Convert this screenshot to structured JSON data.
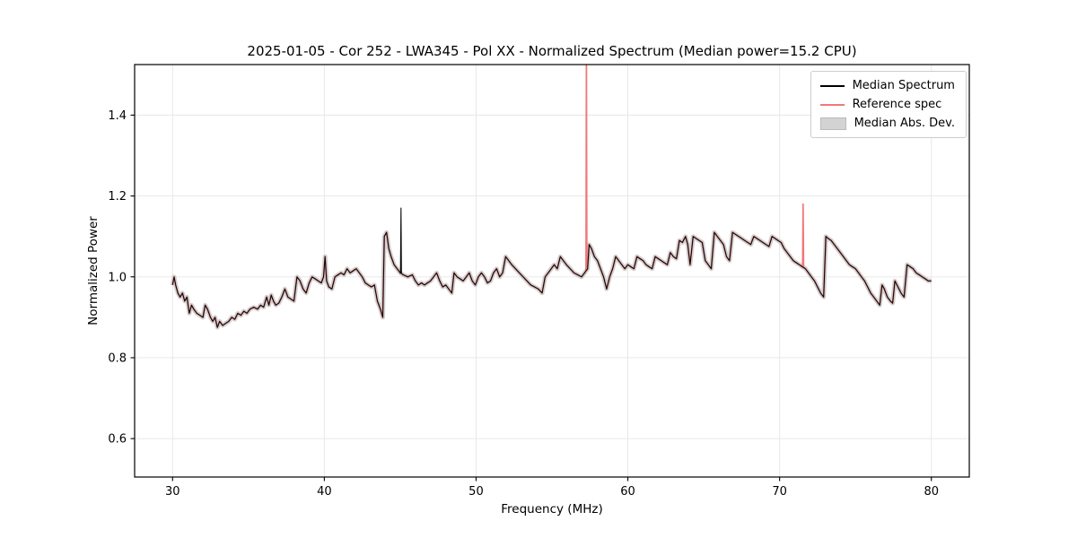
{
  "chart_data": {
    "type": "line",
    "title": "2025-01-05 - Cor 252 - LWA345 - Pol XX - Normalized Spectrum (Median power=15.2 CPU)",
    "xlabel": "Frequency (MHz)",
    "ylabel": "Normalized Power",
    "xlim": [
      27.5,
      82.5
    ],
    "ylim": [
      0.505,
      1.525
    ],
    "grid": true,
    "legend_position": "upper right",
    "xticks": [
      {
        "v": 30,
        "label": "30"
      },
      {
        "v": 40,
        "label": "40"
      },
      {
        "v": 50,
        "label": "50"
      },
      {
        "v": 60,
        "label": "60"
      },
      {
        "v": 70,
        "label": "70"
      },
      {
        "v": 80,
        "label": "80"
      }
    ],
    "yticks": [
      {
        "v": 0.6,
        "label": "0.6"
      },
      {
        "v": 0.8,
        "label": "0.8"
      },
      {
        "v": 1.0,
        "label": "1.0"
      },
      {
        "v": 1.2,
        "label": "1.2"
      },
      {
        "v": 1.4,
        "label": "1.4"
      }
    ],
    "legend": [
      {
        "label": "Median Spectrum",
        "type": "line",
        "color": "#000000"
      },
      {
        "label": "Reference spec",
        "type": "line",
        "color": "#f07878"
      },
      {
        "label": "Median Abs. Dev.",
        "type": "patch",
        "color": "#d3d3d3",
        "edge": "#bbbbbb"
      }
    ],
    "colors": {
      "median": "#0a0a0a",
      "reference": "#f07878",
      "mad_band": "#c9c9c9",
      "grid": "#e6e6e6",
      "frame": "#000000"
    },
    "base_points": [
      [
        30.0,
        0.98
      ],
      [
        30.1,
        1.0
      ],
      [
        30.2,
        0.98
      ],
      [
        30.35,
        0.96
      ],
      [
        30.5,
        0.95
      ],
      [
        30.65,
        0.96
      ],
      [
        30.8,
        0.94
      ],
      [
        30.95,
        0.95
      ],
      [
        31.1,
        0.91
      ],
      [
        31.25,
        0.93
      ],
      [
        31.4,
        0.92
      ],
      [
        31.6,
        0.91
      ],
      [
        31.8,
        0.905
      ],
      [
        32.0,
        0.9
      ],
      [
        32.15,
        0.93
      ],
      [
        32.3,
        0.92
      ],
      [
        32.5,
        0.9
      ],
      [
        32.65,
        0.89
      ],
      [
        32.8,
        0.9
      ],
      [
        32.95,
        0.875
      ],
      [
        33.1,
        0.89
      ],
      [
        33.3,
        0.88
      ],
      [
        33.5,
        0.885
      ],
      [
        33.7,
        0.89
      ],
      [
        33.9,
        0.9
      ],
      [
        34.1,
        0.895
      ],
      [
        34.3,
        0.91
      ],
      [
        34.5,
        0.905
      ],
      [
        34.7,
        0.915
      ],
      [
        34.9,
        0.91
      ],
      [
        35.1,
        0.92
      ],
      [
        35.35,
        0.925
      ],
      [
        35.6,
        0.92
      ],
      [
        35.8,
        0.93
      ],
      [
        36.0,
        0.925
      ],
      [
        36.2,
        0.95
      ],
      [
        36.35,
        0.93
      ],
      [
        36.5,
        0.955
      ],
      [
        36.65,
        0.94
      ],
      [
        36.8,
        0.93
      ],
      [
        37.0,
        0.935
      ],
      [
        37.2,
        0.95
      ],
      [
        37.4,
        0.97
      ],
      [
        37.6,
        0.95
      ],
      [
        37.8,
        0.945
      ],
      [
        38.0,
        0.94
      ],
      [
        38.2,
        1.0
      ],
      [
        38.4,
        0.99
      ],
      [
        38.6,
        0.97
      ],
      [
        38.8,
        0.96
      ],
      [
        39.0,
        0.985
      ],
      [
        39.2,
        1.0
      ],
      [
        39.4,
        0.995
      ],
      [
        39.6,
        0.99
      ],
      [
        39.8,
        0.985
      ],
      [
        39.95,
        1.0
      ],
      [
        40.05,
        1.05
      ],
      [
        40.15,
        0.99
      ],
      [
        40.3,
        0.975
      ],
      [
        40.5,
        0.97
      ],
      [
        40.7,
        1.0
      ],
      [
        40.9,
        1.005
      ],
      [
        41.1,
        1.01
      ],
      [
        41.3,
        1.005
      ],
      [
        41.5,
        1.02
      ],
      [
        41.7,
        1.01
      ],
      [
        41.9,
        1.015
      ],
      [
        42.1,
        1.02
      ],
      [
        42.3,
        1.01
      ],
      [
        42.5,
        1.0
      ],
      [
        42.7,
        0.985
      ],
      [
        42.9,
        0.98
      ],
      [
        43.1,
        0.975
      ],
      [
        43.3,
        0.98
      ],
      [
        43.5,
        0.94
      ],
      [
        43.7,
        0.92
      ],
      [
        43.85,
        0.9
      ],
      [
        43.95,
        1.1
      ],
      [
        44.1,
        1.11
      ],
      [
        44.25,
        1.07
      ],
      [
        44.4,
        1.05
      ],
      [
        44.6,
        1.03
      ],
      [
        44.8,
        1.02
      ],
      [
        45.0,
        1.01
      ],
      [
        45.2,
        1.005
      ],
      [
        45.5,
        1.0
      ],
      [
        45.8,
        1.005
      ],
      [
        46.0,
        0.99
      ],
      [
        46.2,
        0.98
      ],
      [
        46.4,
        0.985
      ],
      [
        46.6,
        0.98
      ],
      [
        46.8,
        0.985
      ],
      [
        47.0,
        0.99
      ],
      [
        47.2,
        1.0
      ],
      [
        47.4,
        1.01
      ],
      [
        47.6,
        0.99
      ],
      [
        47.8,
        0.975
      ],
      [
        48.0,
        0.98
      ],
      [
        48.2,
        0.97
      ],
      [
        48.4,
        0.96
      ],
      [
        48.55,
        1.01
      ],
      [
        48.75,
        1.0
      ],
      [
        48.95,
        0.995
      ],
      [
        49.15,
        0.99
      ],
      [
        49.35,
        1.0
      ],
      [
        49.55,
        1.01
      ],
      [
        49.75,
        0.99
      ],
      [
        49.95,
        0.98
      ],
      [
        50.15,
        1.0
      ],
      [
        50.35,
        1.01
      ],
      [
        50.55,
        1.0
      ],
      [
        50.75,
        0.985
      ],
      [
        50.95,
        0.99
      ],
      [
        51.15,
        1.01
      ],
      [
        51.35,
        1.02
      ],
      [
        51.55,
        1.0
      ],
      [
        51.75,
        1.01
      ],
      [
        51.95,
        1.05
      ],
      [
        52.15,
        1.04
      ],
      [
        52.35,
        1.03
      ],
      [
        52.6,
        1.02
      ],
      [
        52.85,
        1.01
      ],
      [
        53.1,
        1.0
      ],
      [
        53.35,
        0.99
      ],
      [
        53.6,
        0.98
      ],
      [
        53.85,
        0.975
      ],
      [
        54.1,
        0.97
      ],
      [
        54.35,
        0.96
      ],
      [
        54.55,
        1.0
      ],
      [
        54.75,
        1.01
      ],
      [
        54.95,
        1.02
      ],
      [
        55.15,
        1.03
      ],
      [
        55.35,
        1.02
      ],
      [
        55.55,
        1.05
      ],
      [
        55.75,
        1.04
      ],
      [
        55.95,
        1.03
      ],
      [
        56.2,
        1.02
      ],
      [
        56.45,
        1.01
      ],
      [
        56.7,
        1.005
      ],
      [
        56.95,
        1.0
      ],
      [
        57.15,
        1.01
      ],
      [
        57.35,
        1.02
      ],
      [
        57.45,
        1.08
      ],
      [
        57.6,
        1.07
      ],
      [
        57.8,
        1.05
      ],
      [
        58.0,
        1.04
      ],
      [
        58.2,
        1.02
      ],
      [
        58.4,
        1.0
      ],
      [
        58.6,
        0.97
      ],
      [
        58.8,
        1.0
      ],
      [
        59.0,
        1.02
      ],
      [
        59.2,
        1.05
      ],
      [
        59.4,
        1.04
      ],
      [
        59.6,
        1.03
      ],
      [
        59.8,
        1.02
      ],
      [
        60.0,
        1.03
      ],
      [
        60.2,
        1.025
      ],
      [
        60.4,
        1.02
      ],
      [
        60.6,
        1.05
      ],
      [
        60.8,
        1.045
      ],
      [
        61.0,
        1.04
      ],
      [
        61.2,
        1.03
      ],
      [
        61.4,
        1.025
      ],
      [
        61.6,
        1.02
      ],
      [
        61.8,
        1.05
      ],
      [
        62.0,
        1.045
      ],
      [
        62.2,
        1.04
      ],
      [
        62.4,
        1.035
      ],
      [
        62.6,
        1.03
      ],
      [
        62.8,
        1.06
      ],
      [
        63.0,
        1.05
      ],
      [
        63.2,
        1.045
      ],
      [
        63.4,
        1.09
      ],
      [
        63.6,
        1.085
      ],
      [
        63.8,
        1.1
      ],
      [
        63.95,
        1.08
      ],
      [
        64.1,
        1.03
      ],
      [
        64.3,
        1.1
      ],
      [
        64.5,
        1.095
      ],
      [
        64.7,
        1.09
      ],
      [
        64.9,
        1.085
      ],
      [
        65.1,
        1.04
      ],
      [
        65.3,
        1.03
      ],
      [
        65.5,
        1.02
      ],
      [
        65.7,
        1.11
      ],
      [
        65.9,
        1.1
      ],
      [
        66.1,
        1.09
      ],
      [
        66.3,
        1.08
      ],
      [
        66.5,
        1.05
      ],
      [
        66.7,
        1.04
      ],
      [
        66.9,
        1.11
      ],
      [
        67.1,
        1.105
      ],
      [
        67.3,
        1.1
      ],
      [
        67.5,
        1.095
      ],
      [
        67.7,
        1.09
      ],
      [
        67.9,
        1.085
      ],
      [
        68.1,
        1.08
      ],
      [
        68.3,
        1.1
      ],
      [
        68.5,
        1.095
      ],
      [
        68.7,
        1.09
      ],
      [
        68.9,
        1.085
      ],
      [
        69.1,
        1.08
      ],
      [
        69.3,
        1.075
      ],
      [
        69.5,
        1.1
      ],
      [
        69.7,
        1.095
      ],
      [
        69.9,
        1.09
      ],
      [
        70.1,
        1.085
      ],
      [
        70.3,
        1.07
      ],
      [
        70.5,
        1.06
      ],
      [
        70.7,
        1.05
      ],
      [
        70.9,
        1.04
      ],
      [
        71.1,
        1.035
      ],
      [
        71.3,
        1.03
      ],
      [
        71.5,
        1.025
      ],
      [
        71.7,
        1.02
      ],
      [
        71.9,
        1.01
      ],
      [
        72.1,
        1.0
      ],
      [
        72.3,
        0.99
      ],
      [
        72.5,
        0.975
      ],
      [
        72.7,
        0.96
      ],
      [
        72.9,
        0.95
      ],
      [
        73.05,
        1.1
      ],
      [
        73.2,
        1.095
      ],
      [
        73.4,
        1.09
      ],
      [
        73.6,
        1.08
      ],
      [
        73.8,
        1.07
      ],
      [
        74.0,
        1.06
      ],
      [
        74.2,
        1.05
      ],
      [
        74.4,
        1.04
      ],
      [
        74.6,
        1.03
      ],
      [
        74.8,
        1.025
      ],
      [
        75.0,
        1.02
      ],
      [
        75.2,
        1.01
      ],
      [
        75.4,
        1.0
      ],
      [
        75.6,
        0.99
      ],
      [
        75.8,
        0.975
      ],
      [
        76.0,
        0.96
      ],
      [
        76.2,
        0.95
      ],
      [
        76.4,
        0.94
      ],
      [
        76.6,
        0.93
      ],
      [
        76.75,
        0.98
      ],
      [
        76.9,
        0.97
      ],
      [
        77.1,
        0.95
      ],
      [
        77.3,
        0.94
      ],
      [
        77.45,
        0.935
      ],
      [
        77.6,
        0.99
      ],
      [
        77.8,
        0.975
      ],
      [
        78.0,
        0.96
      ],
      [
        78.2,
        0.95
      ],
      [
        78.4,
        1.03
      ],
      [
        78.6,
        1.025
      ],
      [
        78.8,
        1.02
      ],
      [
        79.0,
        1.01
      ],
      [
        79.2,
        1.005
      ],
      [
        79.4,
        1.0
      ],
      [
        79.6,
        0.995
      ],
      [
        79.8,
        0.99
      ],
      [
        80.0,
        0.99
      ]
    ],
    "median_spikes": [
      [
        45.05,
        1.17
      ]
    ],
    "reference_spikes": [
      [
        57.27,
        1.55
      ],
      [
        71.55,
        1.18
      ]
    ]
  }
}
